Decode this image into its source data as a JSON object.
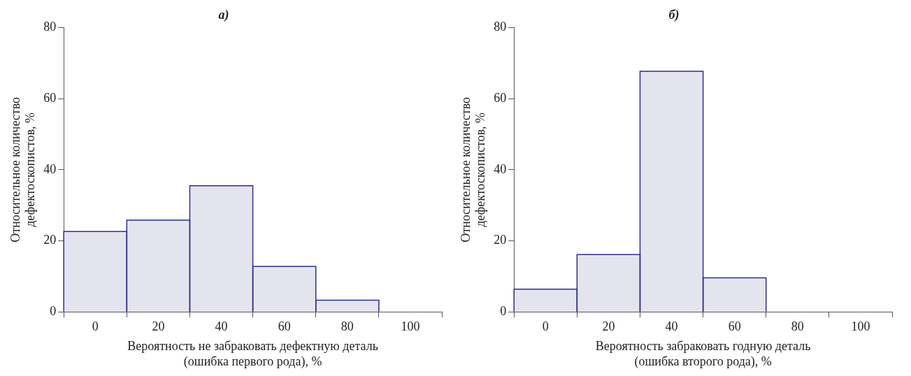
{
  "chart_data": [
    {
      "type": "bar",
      "title": "а)",
      "xlabel": "Вероятность не забраковать дефектную деталь\n(ошибка первого рода), %",
      "ylabel": "Относительное количество\nдефектоскопистов, %",
      "categories": [
        "0",
        "20",
        "40",
        "60",
        "80",
        "100"
      ],
      "series": [
        {
          "color": "#e4e4ef",
          "values": [
            22.6,
            25.8,
            35.5,
            12.8,
            3.3,
            null
          ]
        }
      ],
      "ylim": [
        0,
        80
      ],
      "yticks": [
        0,
        20,
        40,
        60,
        80
      ],
      "grid": false,
      "legend": false
    },
    {
      "type": "bar",
      "title": "б)",
      "xlabel": "Вероятность забраковать годную деталь\n(ошибка второго рода), %",
      "ylabel": "Относительное количество\nдефектоскопистов, %",
      "categories": [
        "0",
        "20",
        "40",
        "60",
        "80",
        "100"
      ],
      "series": [
        {
          "color": "#e4e4ef",
          "values": [
            6.4,
            16.1,
            67.7,
            9.6,
            null,
            null
          ]
        }
      ],
      "ylim": [
        0,
        80
      ],
      "yticks": [
        0,
        20,
        40,
        60,
        80
      ],
      "grid": false,
      "legend": false
    }
  ]
}
